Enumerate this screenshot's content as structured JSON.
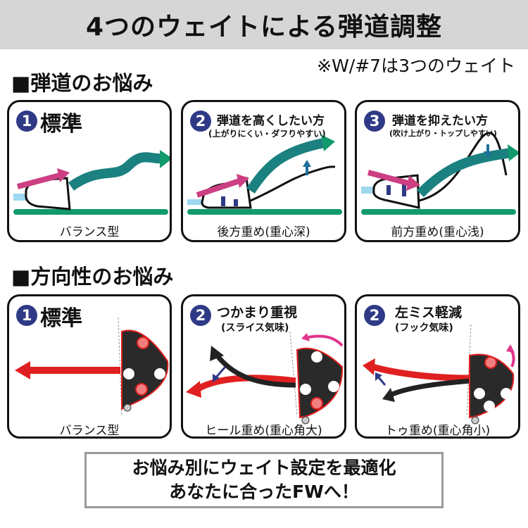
{
  "title": "4つのウェイトによる弾道調整",
  "note": "※W/#7は3つのウェイト",
  "section1": {
    "heading": "■弾道のお悩み",
    "panels": [
      {
        "num": "1",
        "title": "標準",
        "subtitle": "",
        "caption": "バランス型"
      },
      {
        "num": "2",
        "title": "弾道を高くしたい方",
        "subtitle": "(上がりにくい・ダフりやすい)",
        "caption": "後方重め(重心深)"
      },
      {
        "num": "3",
        "title": "弾道を抑えたい方",
        "subtitle": "(吹け上がり・トップしやすい)",
        "caption": "前方重め(重心浅)"
      }
    ]
  },
  "section2": {
    "heading": "■方向性のお悩み",
    "panels": [
      {
        "num": "1",
        "title": "標準",
        "subtitle": "",
        "caption": "バランス型"
      },
      {
        "num": "2",
        "title": "つかまり重視",
        "subtitle": "(スライス気味)",
        "caption": "ヒール重め(重心角大)"
      },
      {
        "num": "2",
        "title": "左ミス軽減",
        "subtitle": "(フック気味)",
        "caption": "トゥ重め(重心角小)"
      }
    ]
  },
  "footer": {
    "line1": "お悩み別にウェイト設定を最適化",
    "line2": "あなたに合ったFWへ！"
  },
  "colors": {
    "badge": "#2f3a86",
    "trajectory": "#119a6e",
    "swing": "#cc3f82",
    "ground": "#119a6e",
    "weight_heavy": "#e8363c",
    "arrow_blue": "#1f6f9a"
  }
}
